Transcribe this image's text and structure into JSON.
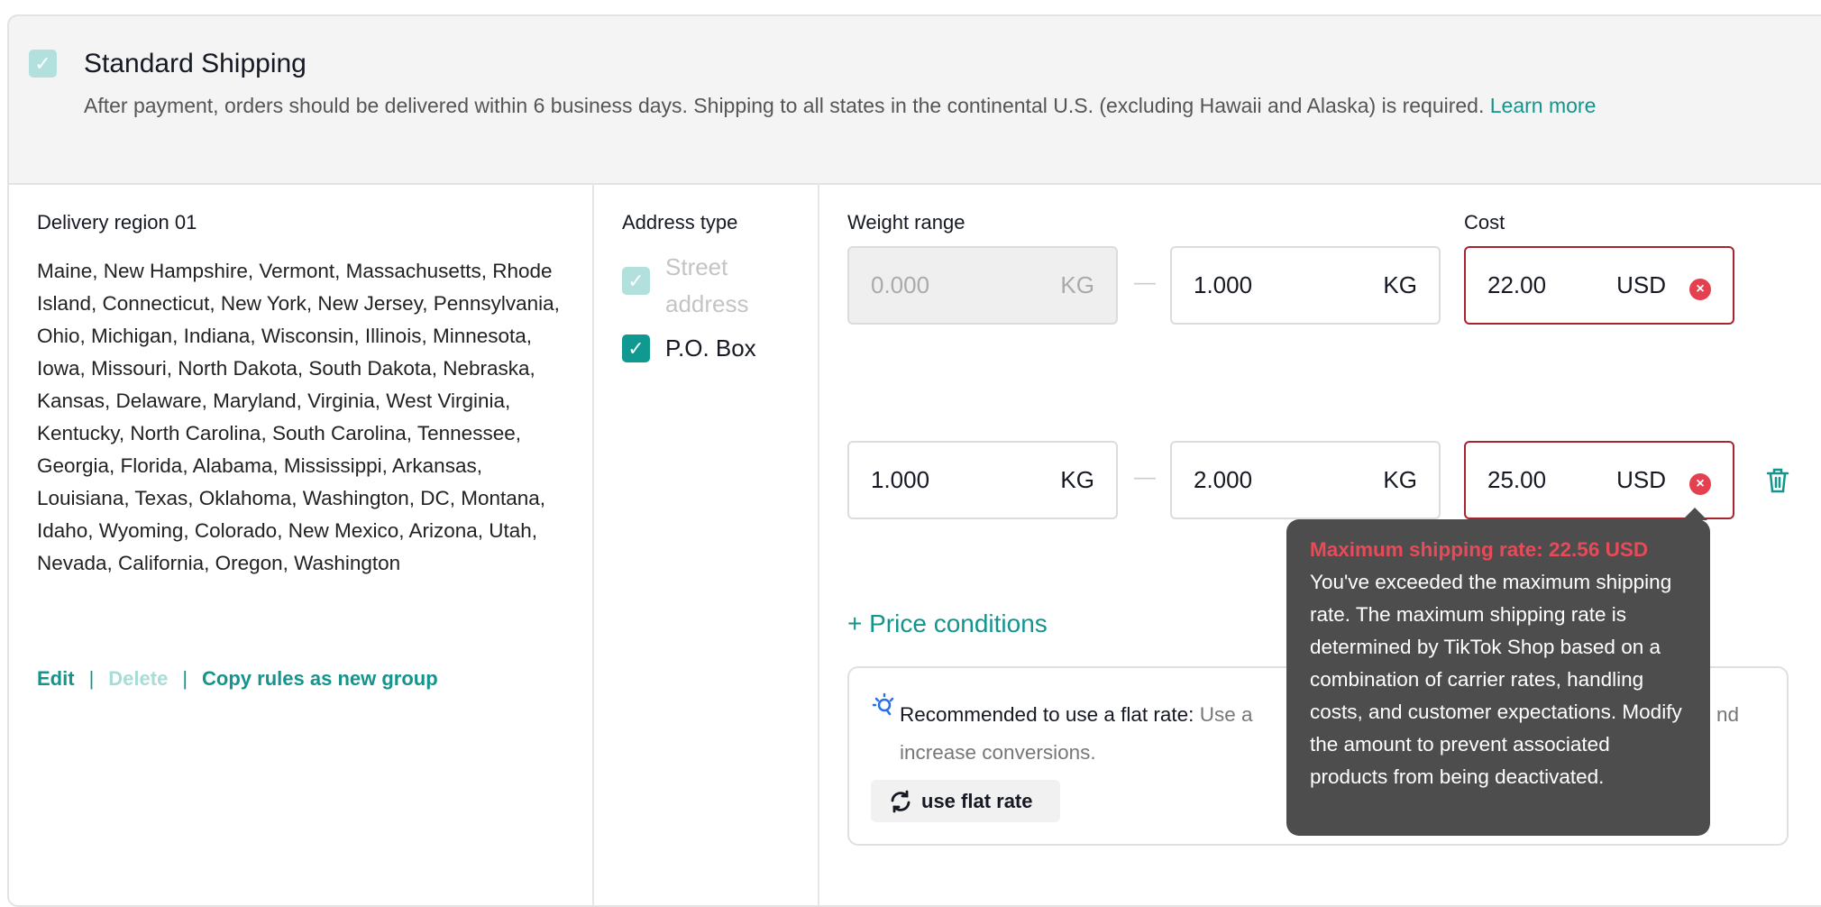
{
  "shipping": {
    "enabled": true,
    "title": "Standard Shipping",
    "description": "After payment, orders should be delivered within 6 business days. Shipping to all states in the continental U.S. (excluding Hawaii and Alaska) is required.",
    "learn_more": "Learn more"
  },
  "region": {
    "title": "Delivery region 01",
    "states": "Maine, New Hampshire, Vermont, Massachusetts, Rhode Island, Connecticut, New York, New Jersey, Pennsylvania, Ohio, Michigan, Indiana, Wisconsin, Illinois, Minnesota, Iowa, Missouri, North Dakota, South Dakota, Nebraska, Kansas, Delaware, Maryland, Virginia, West Virginia, Kentucky, North Carolina, South Carolina, Tennessee, Georgia, Florida, Alabama, Mississippi, Arkansas, Louisiana, Texas, Oklahoma, Washington, DC, Montana, Idaho, Wyoming, Colorado, New Mexico, Arizona, Utah, Nevada, California, Oregon, Washington",
    "edit": "Edit",
    "delete": "Delete",
    "separator": "|",
    "copy": "Copy rules as new group"
  },
  "address": {
    "label": "Address type",
    "options": [
      {
        "label": "Street address",
        "checked": true,
        "disabled": true
      },
      {
        "label": "P.O. Box",
        "checked": true,
        "disabled": false
      }
    ]
  },
  "rates": {
    "weight_label": "Weight range",
    "cost_label": "Cost",
    "unit": "KG",
    "currency": "USD",
    "dash": "—",
    "rows": [
      {
        "from": "0.000",
        "to": "1.000",
        "cost": "22.00"
      },
      {
        "from": "1.000",
        "to": "2.000",
        "cost": "25.00"
      }
    ]
  },
  "price_conditions": "+ Price conditions",
  "recommendation": {
    "title": "Recommended to use a flat rate:",
    "text_visible_1": "Use a",
    "text_visible_2": "nd",
    "text_line2": "increase conversions.",
    "button": "use flat rate"
  },
  "tooltip": {
    "title": "Maximum shipping rate: 22.56 USD",
    "body": "You've exceeded the maximum shipping rate. The maximum shipping rate is determined by TikTok Shop based on a combination of carrier rates, handling costs, and customer expectations. Modify the amount to prevent associated products from being deactivated."
  },
  "colors": {
    "accent": "#13958d",
    "error": "#e5404f",
    "tooltip_bg": "#4d4d4d"
  }
}
